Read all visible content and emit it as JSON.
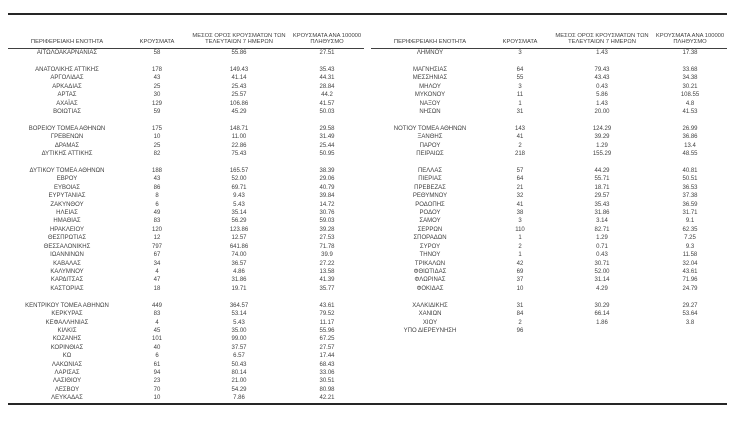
{
  "report": {
    "columns": [
      "ΠΕΡΙΦΕΡΕΙΑΚΗ ΕΝΟΤΗΤΑ",
      "ΚΡΟΥΣΜΑΤΑ",
      "ΜΕΣΟΣ ΟΡΟΣ ΚΡΟΥΣΜΑΤΩΝ ΤΩΝ ΤΕΛΕΥΤΑΙΩΝ 7 ΗΜΕΡΩΝ",
      "ΚΡΟΥΣΜΑΤΑ ΑΝΑ 100000 ΠΛΗΘΥΣΜΟ"
    ],
    "groups": [
      {
        "left": [
          [
            "ΑΙΤΩΛΟΑΚΑΡΝΑΝΙΑΣ",
            "58",
            "55.86",
            "27.51"
          ]
        ],
        "right": [
          [
            "ΛΗΜΝΟΥ",
            "3",
            "1.43",
            "17.38"
          ]
        ]
      },
      {
        "left": [
          [
            "ΑΝΑΤΟΛΙΚΗΣ ΑΤΤΙΚΗΣ",
            "178",
            "149.43",
            "35.43"
          ],
          [
            "ΑΡΓΟΛΙΔΑΣ",
            "43",
            "41.14",
            "44.31"
          ],
          [
            "ΑΡΚΑΔΙΑΣ",
            "25",
            "25.43",
            "28.84"
          ],
          [
            "ΑΡΤΑΣ",
            "30",
            "25.57",
            "44.2"
          ],
          [
            "ΑΧΑΪΑΣ",
            "129",
            "106.86",
            "41.57"
          ],
          [
            "ΒΟΙΩΤΙΑΣ",
            "59",
            "45.29",
            "50.03"
          ]
        ],
        "right": [
          [
            "ΜΑΓΝΗΣΙΑΣ",
            "64",
            "79.43",
            "33.68"
          ],
          [
            "ΜΕΣΣΗΝΙΑΣ",
            "55",
            "43.43",
            "34.38"
          ],
          [
            "ΜΗΛΟΥ",
            "3",
            "0.43",
            "30.21"
          ],
          [
            "ΜΥΚΟΝΟΥ",
            "11",
            "5.86",
            "108.55"
          ],
          [
            "ΝΑΞΟΥ",
            "1",
            "1.43",
            "4.8"
          ],
          [
            "ΝΗΣΩΝ",
            "31",
            "20.00",
            "41.53"
          ]
        ]
      },
      {
        "left": [
          [
            "ΒΟΡΕΙΟΥ ΤΟΜΕΑ ΑΘΗΝΩΝ",
            "175",
            "148.71",
            "29.58"
          ],
          [
            "ΓΡΕΒΕΝΩΝ",
            "10",
            "11.00",
            "31.49"
          ],
          [
            "ΔΡΑΜΑΣ",
            "25",
            "22.86",
            "25.44"
          ],
          [
            "ΔΥΤΙΚΗΣ ΑΤΤΙΚΗΣ",
            "82",
            "75.43",
            "50.95"
          ]
        ],
        "right": [
          [
            "ΝΟΤΙΟΥ ΤΟΜΕΑ ΑΘΗΝΩΝ",
            "143",
            "124.29",
            "26.99"
          ],
          [
            "ΞΑΝΘΗΣ",
            "41",
            "39.29",
            "36.86"
          ],
          [
            "ΠΑΡΟΥ",
            "2",
            "1.29",
            "13.4"
          ],
          [
            "ΠΕΙΡΑΙΩΣ",
            "218",
            "155.29",
            "48.55"
          ]
        ]
      },
      {
        "left": [
          [
            "ΔΥΤΙΚΟΥ ΤΟΜΕΑ ΑΘΗΝΩΝ",
            "188",
            "165.57",
            "38.39"
          ],
          [
            "ΕΒΡΟΥ",
            "43",
            "52.00",
            "29.06"
          ],
          [
            "ΕΥΒΟΙΑΣ",
            "86",
            "69.71",
            "40.79"
          ],
          [
            "ΕΥΡΥΤΑΝΙΑΣ",
            "8",
            "9.43",
            "39.84"
          ],
          [
            "ΖΑΚΥΝΘΟΥ",
            "6",
            "5.43",
            "14.72"
          ],
          [
            "ΗΛΕΙΑΣ",
            "49",
            "35.14",
            "30.76"
          ],
          [
            "ΗΜΑΘΙΑΣ",
            "83",
            "56.29",
            "59.03"
          ],
          [
            "ΗΡΑΚΛΕΙΟΥ",
            "120",
            "123.86",
            "39.28"
          ],
          [
            "ΘΕΣΠΡΩΤΙΑΣ",
            "12",
            "12.57",
            "27.53"
          ],
          [
            "ΘΕΣΣΑΛΟΝΙΚΗΣ",
            "797",
            "641.86",
            "71.78"
          ],
          [
            "ΙΩΑΝΝΙΝΩΝ",
            "67",
            "74.00",
            "39.9"
          ],
          [
            "ΚΑΒΑΛΑΣ",
            "34",
            "36.57",
            "27.22"
          ],
          [
            "ΚΑΛΥΜΝΟΥ",
            "4",
            "4.86",
            "13.58"
          ],
          [
            "ΚΑΡΔΙΤΣΑΣ",
            "47",
            "31.86",
            "41.39"
          ],
          [
            "ΚΑΣΤΟΡΙΑΣ",
            "18",
            "19.71",
            "35.77"
          ]
        ],
        "right": [
          [
            "ΠΕΛΛΑΣ",
            "57",
            "44.29",
            "40.81"
          ],
          [
            "ΠΙΕΡΙΑΣ",
            "64",
            "55.71",
            "50.51"
          ],
          [
            "ΠΡΕΒΕΖΑΣ",
            "21",
            "18.71",
            "36.53"
          ],
          [
            "ΡΕΘΥΜΝΟΥ",
            "32",
            "29.57",
            "37.38"
          ],
          [
            "ΡΟΔΟΠΗΣ",
            "41",
            "35.43",
            "36.59"
          ],
          [
            "ΡΟΔΟΥ",
            "38",
            "31.86",
            "31.71"
          ],
          [
            "ΣΑΜΟΥ",
            "3",
            "3.14",
            "9.1"
          ],
          [
            "ΣΕΡΡΩΝ",
            "110",
            "82.71",
            "62.35"
          ],
          [
            "ΣΠΟΡΑΔΩΝ",
            "1",
            "1.29",
            "7.25"
          ],
          [
            "ΣΥΡΟΥ",
            "2",
            "0.71",
            "9.3"
          ],
          [
            "ΤΗΝΟΥ",
            "1",
            "0.43",
            "11.58"
          ],
          [
            "ΤΡΙΚΑΛΩΝ",
            "42",
            "30.71",
            "32.04"
          ],
          [
            "ΦΘΙΩΤΙΔΑΣ",
            "69",
            "52.00",
            "43.61"
          ],
          [
            "ΦΛΩΡΙΝΑΣ",
            "37",
            "31.14",
            "71.96"
          ],
          [
            "ΦΟΚΙΔΑΣ",
            "10",
            "4.29",
            "24.79"
          ]
        ]
      },
      {
        "left": [
          [
            "ΚΕΝΤΡΙΚΟΥ ΤΟΜΕΑ ΑΘΗΝΩΝ",
            "449",
            "364.57",
            "43.61"
          ],
          [
            "ΚΕΡΚΥΡΑΣ",
            "83",
            "53.14",
            "79.52"
          ],
          [
            "ΚΕΦΑΛΛΗΝΙΑΣ",
            "4",
            "5.43",
            "11.17"
          ],
          [
            "ΚΙΛΚΙΣ",
            "45",
            "35.00",
            "55.96"
          ],
          [
            "ΚΟΖΑΝΗΣ",
            "101",
            "99.00",
            "67.25"
          ],
          [
            "ΚΟΡΙΝΘΙΑΣ",
            "40",
            "37.57",
            "27.57"
          ],
          [
            "ΚΩ",
            "6",
            "6.57",
            "17.44"
          ],
          [
            "ΛΑΚΩΝΙΑΣ",
            "61",
            "50.43",
            "68.43"
          ],
          [
            "ΛΑΡΙΣΑΣ",
            "94",
            "80.14",
            "33.06"
          ],
          [
            "ΛΑΣΙΘΙΟΥ",
            "23",
            "21.00",
            "30.51"
          ],
          [
            "ΛΕΣΒΟΥ",
            "70",
            "54.29",
            "80.98"
          ],
          [
            "ΛΕΥΚΑΔΑΣ",
            "10",
            "7.86",
            "42.21"
          ]
        ],
        "right": [
          [
            "ΧΑΛΚΙΔΙΚΗΣ",
            "31",
            "30.29",
            "29.27"
          ],
          [
            "ΧΑΝΙΩΝ",
            "84",
            "66.14",
            "53.64"
          ],
          [
            "ΧΙΟΥ",
            "2",
            "1.86",
            "3.8"
          ],
          [
            "ΥΠΟ ΔΙΕΡΕΥΝΗΣΗ",
            "96",
            "",
            ""
          ]
        ]
      }
    ]
  }
}
